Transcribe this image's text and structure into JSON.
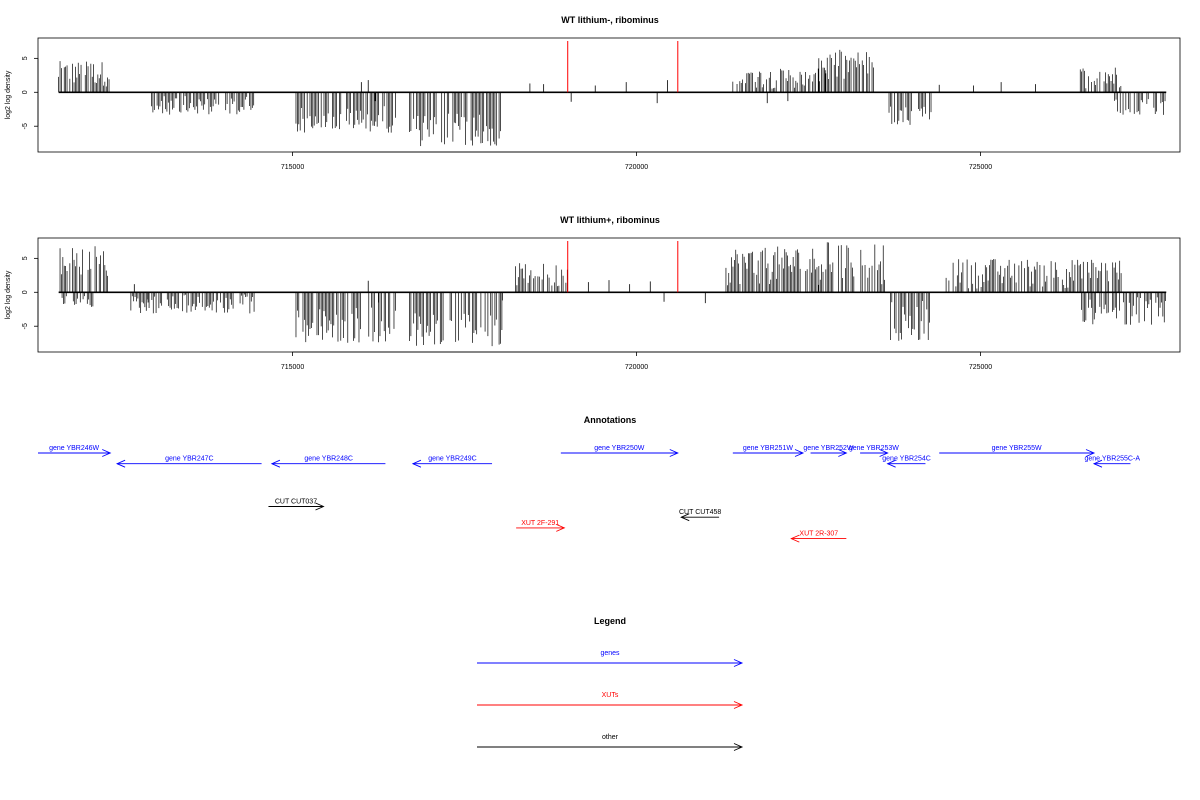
{
  "chart_data": [
    {
      "type": "bar",
      "title": "WT lithium-, ribominus",
      "xlabel": "",
      "ylabel": "log2 log density",
      "xlim": [
        711300,
        727900
      ],
      "ylim": [
        -8.8,
        8
      ],
      "yticks": [
        -5,
        0,
        5
      ],
      "xticks": [
        715000,
        720000,
        725000
      ],
      "xtick_labels": [
        "715000",
        "720000",
        "725000"
      ],
      "marker_lines": [
        719000,
        720600
      ],
      "baseline": [
        711600,
        727700
      ],
      "regions": [
        {
          "start": 711600,
          "end": 712350,
          "sign": 1,
          "min": 0.8,
          "max": 4.6
        },
        {
          "start": 712950,
          "end": 714450,
          "sign": -1,
          "min": 0.5,
          "max": 3.3
        },
        {
          "start": 715050,
          "end": 716500,
          "sign": -1,
          "min": 2,
          "max": 6
        },
        {
          "start": 716700,
          "end": 718050,
          "sign": -1,
          "min": 3,
          "max": 8
        },
        {
          "start": 721400,
          "end": 722750,
          "sign": 1,
          "min": 0.5,
          "max": 3.5
        },
        {
          "start": 722650,
          "end": 723450,
          "sign": 1,
          "min": 1,
          "max": 6.3
        },
        {
          "start": 723650,
          "end": 724300,
          "sign": -1,
          "min": 1,
          "max": 4.9
        },
        {
          "start": 726450,
          "end": 727050,
          "sign": 1,
          "min": 0.5,
          "max": 3.8
        },
        {
          "start": 726950,
          "end": 727700,
          "sign": -1,
          "min": 1,
          "max": 3.5
        }
      ],
      "sparse": [
        [
          716000,
          1.5
        ],
        [
          716200,
          -1.3
        ],
        [
          716100,
          1.8
        ],
        [
          718450,
          1.3
        ],
        [
          718650,
          1.2
        ],
        [
          719050,
          -1.4
        ],
        [
          719400,
          1.0
        ],
        [
          719850,
          1.5
        ],
        [
          720450,
          1.8
        ],
        [
          720300,
          -1.6
        ],
        [
          724400,
          1.1
        ],
        [
          724900,
          1.0
        ],
        [
          725300,
          1.5
        ],
        [
          725800,
          1.2
        ],
        [
          721900,
          -1.6
        ],
        [
          722200,
          -1.3
        ]
      ]
    },
    {
      "type": "bar",
      "title": "WT lithium+, ribominus",
      "xlabel": "",
      "ylabel": "log2 log density",
      "xlim": [
        711300,
        727900
      ],
      "ylim": [
        -8.8,
        8
      ],
      "yticks": [
        -5,
        0,
        5
      ],
      "xticks": [
        715000,
        720000,
        725000
      ],
      "xtick_labels": [
        "715000",
        "720000",
        "725000"
      ],
      "marker_lines": [
        719000,
        720600
      ],
      "baseline": [
        711600,
        727700
      ],
      "regions": [
        {
          "start": 711600,
          "end": 712350,
          "sign": 1,
          "min": 1,
          "max": 7
        },
        {
          "start": 711650,
          "end": 712100,
          "sign": -1,
          "min": 0.5,
          "max": 2.2
        },
        {
          "start": 712650,
          "end": 714450,
          "sign": -1,
          "min": 0.3,
          "max": 3.2
        },
        {
          "start": 715050,
          "end": 716500,
          "sign": -1,
          "min": 2,
          "max": 7.6
        },
        {
          "start": 716700,
          "end": 718050,
          "sign": -1,
          "min": 3,
          "max": 8
        },
        {
          "start": 718200,
          "end": 719000,
          "sign": 1,
          "min": 0.5,
          "max": 4.3
        },
        {
          "start": 721300,
          "end": 722650,
          "sign": 1,
          "min": 1,
          "max": 6.8
        },
        {
          "start": 722650,
          "end": 723650,
          "sign": 1,
          "min": 1,
          "max": 7.6
        },
        {
          "start": 723650,
          "end": 724300,
          "sign": -1,
          "min": 1,
          "max": 7.2
        },
        {
          "start": 724500,
          "end": 727050,
          "sign": 1,
          "min": 0.5,
          "max": 5
        },
        {
          "start": 726450,
          "end": 727700,
          "sign": -1,
          "min": 0.5,
          "max": 4.8
        }
      ],
      "sparse": [
        [
          719300,
          1.5
        ],
        [
          719600,
          1.8
        ],
        [
          719900,
          1.2
        ],
        [
          720200,
          1.6
        ],
        [
          720400,
          -1.4
        ],
        [
          721000,
          -1.6
        ],
        [
          716100,
          1.7
        ],
        [
          716250,
          -1.5
        ],
        [
          712700,
          1.2
        ],
        [
          712900,
          -1.5
        ],
        [
          718050,
          -1.2
        ]
      ]
    }
  ],
  "annotations": {
    "title": "Annotations",
    "xlim": [
      711300,
      727900
    ],
    "items": [
      {
        "label": "gene YBR246W",
        "start": 711300,
        "end": 712350,
        "strand": "+",
        "row": 0,
        "color": "#0000ff"
      },
      {
        "label": "gene YBR247C",
        "start": 712450,
        "end": 714550,
        "strand": "-",
        "row": 1,
        "color": "#0000ff"
      },
      {
        "label": "gene YBR248C",
        "start": 714700,
        "end": 716350,
        "strand": "-",
        "row": 1,
        "color": "#0000ff"
      },
      {
        "label": "gene YBR249C",
        "start": 716750,
        "end": 717900,
        "strand": "-",
        "row": 1,
        "color": "#0000ff"
      },
      {
        "label": "gene YBR250W",
        "start": 718900,
        "end": 720600,
        "strand": "+",
        "row": 0,
        "color": "#0000ff"
      },
      {
        "label": "gene YBR251W",
        "start": 721400,
        "end": 722420,
        "strand": "+",
        "row": 0,
        "color": "#0000ff"
      },
      {
        "label": "gene YBR252W",
        "start": 722530,
        "end": 723050,
        "strand": "+",
        "row": 0,
        "color": "#0000ff"
      },
      {
        "label": "gene YBR253W",
        "start": 723250,
        "end": 723650,
        "strand": "+",
        "row": 0,
        "color": "#0000ff"
      },
      {
        "label": "gene YBR254C",
        "start": 723650,
        "end": 724200,
        "strand": "-",
        "row": 1,
        "color": "#0000ff"
      },
      {
        "label": "gene YBR255W",
        "start": 724400,
        "end": 726650,
        "strand": "+",
        "row": 0,
        "color": "#0000ff"
      },
      {
        "label": "gene YBR255C-A",
        "start": 726650,
        "end": 727180,
        "strand": "-",
        "row": 1,
        "color": "#0000ff"
      },
      {
        "label": "CUT CUT037",
        "start": 714650,
        "end": 715450,
        "strand": "+",
        "row": 5,
        "color": "#000000"
      },
      {
        "label": "XUT 2F-291",
        "start": 718250,
        "end": 718950,
        "strand": "+",
        "row": 7,
        "color": "#ff0000"
      },
      {
        "label": "CUT CUT458",
        "start": 720650,
        "end": 721200,
        "strand": "-",
        "row": 6,
        "color": "#000000"
      },
      {
        "label": "XUT 2R-307",
        "start": 722250,
        "end": 723050,
        "strand": "-",
        "row": 8,
        "color": "#ff0000"
      }
    ]
  },
  "legend": {
    "title": "Legend",
    "items": [
      {
        "label": "genes",
        "color": "#0000ff"
      },
      {
        "label": "XUTs",
        "color": "#ff0000"
      },
      {
        "label": "other",
        "color": "#000000"
      }
    ]
  }
}
